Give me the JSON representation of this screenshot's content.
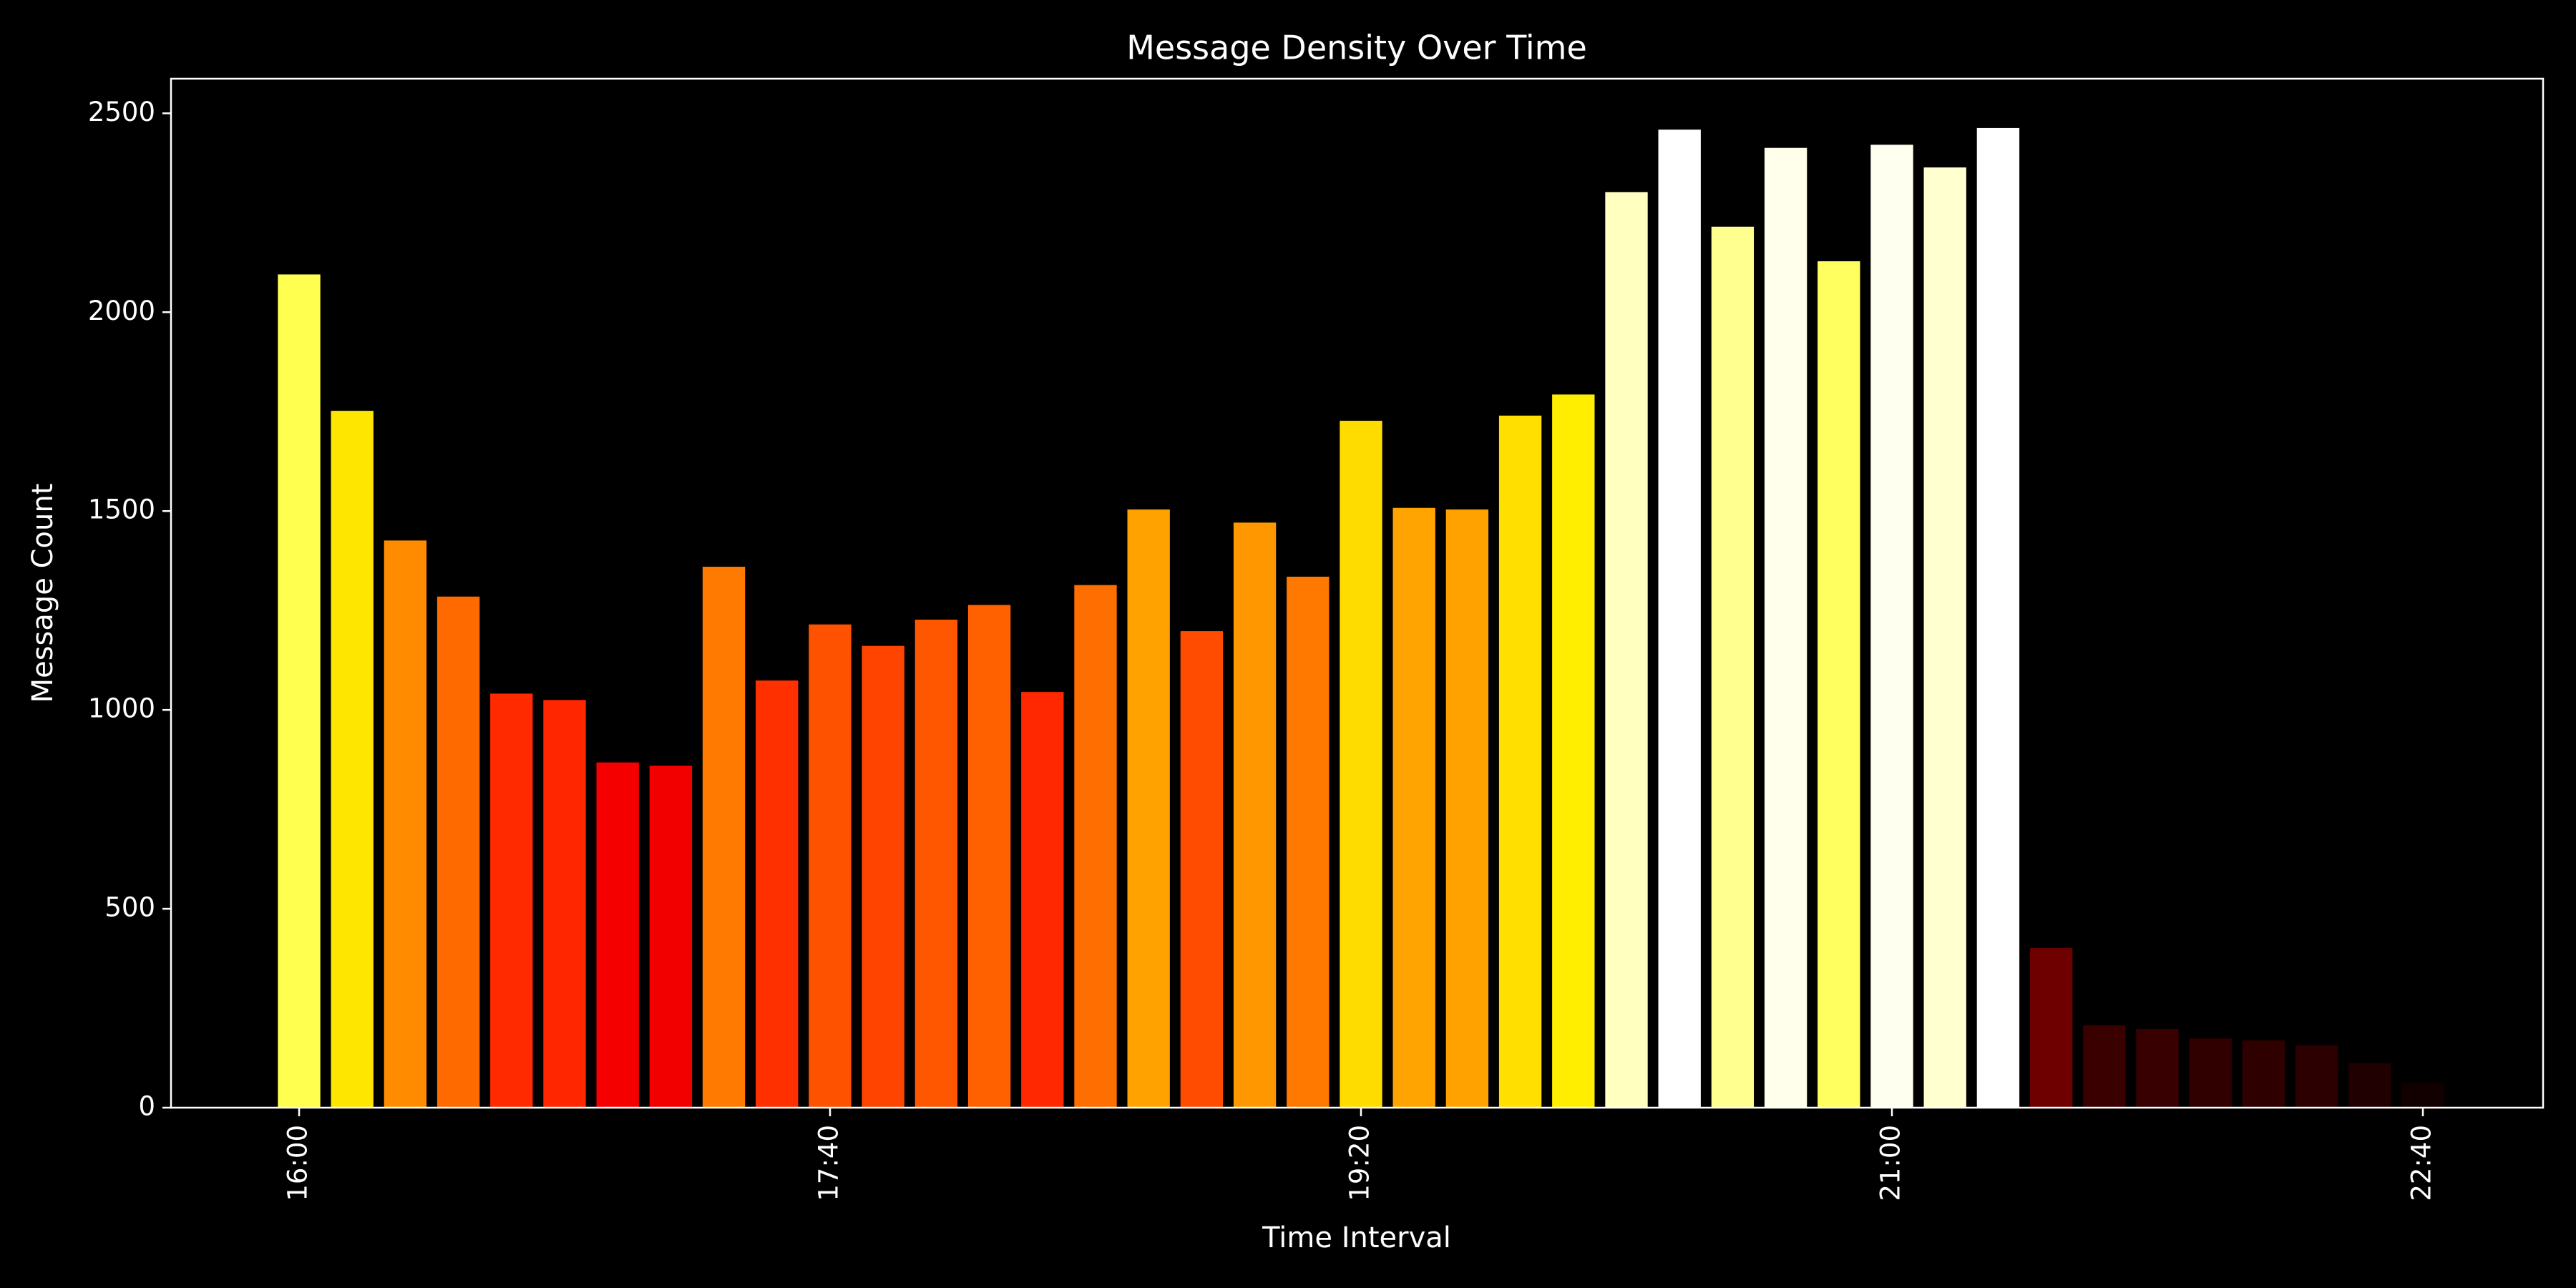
{
  "chart_data": {
    "type": "bar",
    "title": "Message Density Over Time",
    "xlabel": "Time Interval",
    "ylabel": "Message Count",
    "categories": [
      "16:00",
      null,
      null,
      null,
      null,
      null,
      null,
      null,
      null,
      null,
      "17:40",
      null,
      null,
      null,
      null,
      null,
      null,
      null,
      null,
      null,
      "19:20",
      null,
      null,
      null,
      null,
      null,
      null,
      null,
      null,
      null,
      "21:00",
      null,
      null,
      null,
      null,
      null,
      null,
      null,
      null,
      null,
      "22:40"
    ],
    "values": [
      2095,
      1752,
      1426,
      1285,
      1041,
      1025,
      868,
      860,
      1360,
      1074,
      1215,
      1161,
      1227,
      1264,
      1045,
      1314,
      1504,
      1198,
      1471,
      1335,
      1727,
      1508,
      1504,
      1740,
      1793,
      2302,
      2459,
      2215,
      2413,
      2128,
      2421,
      2364,
      2463,
      401,
      207,
      198,
      174,
      169,
      157,
      112,
      62
    ],
    "colors": [
      "#ffff50",
      "#ffe600",
      "#ff8c00",
      "#ff6a00",
      "#ff2a00",
      "#ff2600",
      "#f50000",
      "#f20000",
      "#ff7a00",
      "#ff3000",
      "#ff5200",
      "#ff4400",
      "#ff5600",
      "#ff6000",
      "#ff2800",
      "#ff6e00",
      "#ffa200",
      "#ff4c00",
      "#ff9800",
      "#ff7800",
      "#ffdc00",
      "#ffa400",
      "#ffa200",
      "#ffdf00",
      "#ffee00",
      "#ffffc0",
      "#ffffff",
      "#ffff90",
      "#ffffeb",
      "#ffff60",
      "#fffff0",
      "#ffffd0",
      "#ffffff",
      "#6e0000",
      "#3a0000",
      "#380000",
      "#300000",
      "#2f0000",
      "#2c0000",
      "#200000",
      "#120000"
    ],
    "ylim": [
      0,
      2587
    ],
    "yticks": [
      0,
      500,
      1000,
      1500,
      2000,
      2500
    ]
  }
}
